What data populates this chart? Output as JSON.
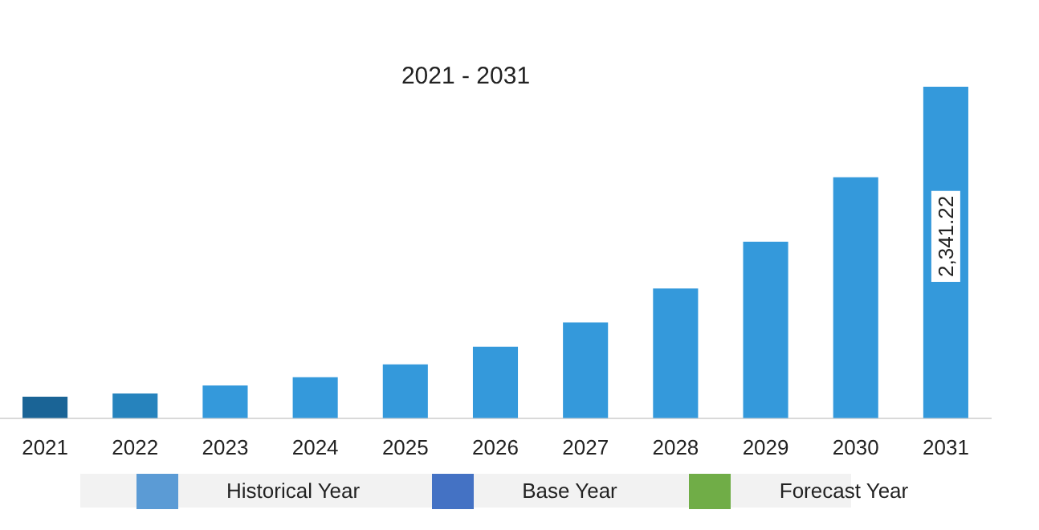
{
  "chart_data": {
    "type": "bar",
    "title": "2021 - 2031",
    "categories": [
      "2021",
      "2022",
      "2023",
      "2024",
      "2025",
      "2026",
      "2027",
      "2028",
      "2029",
      "2030",
      "2031"
    ],
    "series": [
      {
        "colors": [
          "#1a6496",
          "#2683bd",
          "#3499db",
          "#3499db",
          "#3499db",
          "#3499db",
          "#3499db",
          "#3499db",
          "#3499db",
          "#3499db",
          "#3499db"
        ],
        "values": [
          152,
          174,
          232,
          289,
          380,
          505,
          676,
          916,
          1246,
          1702,
          2341.22
        ],
        "value_labels": [
          null,
          null,
          null,
          null,
          null,
          null,
          null,
          null,
          null,
          null,
          "2,341.22"
        ]
      }
    ],
    "annotations": [
      "Historical Year",
      "Base Year",
      "Forecast Year"
    ]
  }
}
